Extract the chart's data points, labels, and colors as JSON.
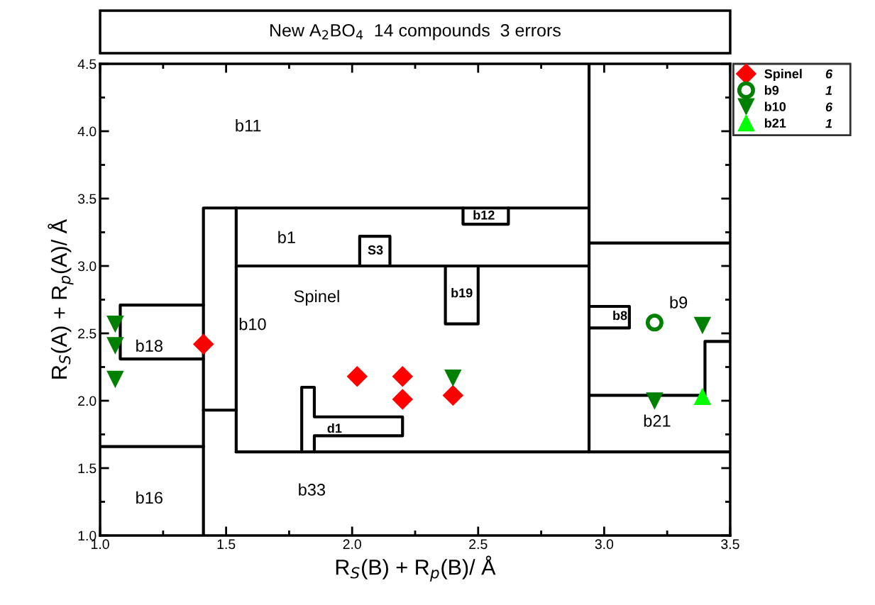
{
  "chart_data": {
    "type": "scatter",
    "title": "New A$_{2}$BO$_{4}$  14 compounds  3 errors",
    "xlabel": "R$_{S}$(B) + R$_{p}$(B)/ Å",
    "ylabel": "R$_{S}$(A) + R$_{p}$(A)/ Å",
    "xlim": [
      1.0,
      3.5
    ],
    "ylim": [
      1.0,
      4.5
    ],
    "xticks": [
      {
        "value": 1.0,
        "label": "1.0"
      },
      1.5,
      {
        "value": 2.0,
        "label": "2.0"
      },
      2.5,
      {
        "value": 3.0,
        "label": "3.0"
      },
      3.5
    ],
    "yticks": [
      {
        "value": 1.0,
        "label": "1.0"
      },
      1.5,
      {
        "value": 2.0,
        "label": "2.0"
      },
      2.5,
      {
        "value": 3.0,
        "label": "3.0"
      },
      3.5,
      {
        "value": 4.0,
        "label": "4.0"
      },
      4.5
    ],
    "grid": false,
    "legend": "top right",
    "series": [
      {
        "name": "Spinel",
        "color": "#ff0000",
        "marker": "diamond",
        "x": [
          1.41,
          2.02,
          2.2,
          2.2,
          2.4
        ],
        "values": [
          2.42,
          2.18,
          2.18,
          2.01,
          2.04
        ]
      },
      {
        "name": "b9",
        "color": "#008000",
        "marker": "circle",
        "x": [
          3.2
        ],
        "values": [
          2.58
        ]
      },
      {
        "name": "b10",
        "color": "#008000",
        "marker": "triangle",
        "x": [
          1.06,
          1.06,
          1.06,
          2.4,
          3.39,
          3.2
        ],
        "values": [
          2.57,
          2.41,
          2.16,
          2.17,
          2.56,
          2.0
        ]
      },
      {
        "name": "b21",
        "color": "#00ff00",
        "marker": "triangle",
        "x": [
          3.39
        ],
        "values": [
          2.03
        ]
      },
      {
        "type": "line",
        "color": "#000000",
        "x": [
          1.0,
          1.41
        ],
        "values": [
          1.66,
          1.66
        ]
      },
      {
        "type": "line",
        "color": "#000000",
        "x": [
          1.41,
          1.41,
          2.94
        ],
        "values": [
          1.0,
          3.43,
          3.43
        ]
      },
      {
        "type": "line",
        "color": "#000000",
        "x": [
          2.94,
          2.94
        ],
        "values": [
          4.5,
          1.62
        ]
      },
      {
        "type": "line",
        "color": "#000000",
        "x": [
          1.54,
          1.54
        ],
        "values": [
          3.43,
          1.62
        ]
      },
      {
        "type": "line",
        "color": "#000000",
        "x": [
          1.41,
          1.54
        ],
        "values": [
          1.93,
          1.93
        ]
      },
      {
        "type": "line",
        "color": "#000000",
        "x": [
          1.54,
          3.5
        ],
        "values": [
          1.62,
          1.62
        ]
      },
      {
        "type": "line",
        "color": "#000000",
        "x": [
          1.54,
          2.94
        ],
        "values": [
          3.0,
          3.0
        ]
      },
      {
        "type": "line",
        "color": "#000000",
        "x": [
          1.41,
          1.08,
          1.08,
          1.41
        ],
        "values": [
          2.71,
          2.71,
          2.31,
          2.31
        ]
      },
      {
        "type": "line",
        "color": "#000000",
        "x": [
          2.03,
          2.03,
          2.15,
          2.15
        ],
        "values": [
          3.0,
          3.22,
          3.22,
          3.0
        ]
      },
      {
        "type": "line",
        "color": "#000000",
        "x": [
          2.44,
          2.44,
          2.62,
          2.62
        ],
        "values": [
          3.43,
          3.31,
          3.31,
          3.43
        ]
      },
      {
        "type": "line",
        "color": "#000000",
        "x": [
          2.37,
          2.37,
          2.5,
          2.5
        ],
        "values": [
          3.0,
          2.57,
          2.57,
          3.0
        ]
      },
      {
        "type": "line",
        "color": "#000000",
        "x": [
          1.8,
          1.8,
          1.85,
          1.85,
          2.2,
          2.2,
          1.85,
          1.85
        ],
        "values": [
          1.62,
          2.1,
          2.1,
          1.88,
          1.88,
          1.74,
          1.74,
          1.62
        ]
      },
      {
        "type": "line",
        "color": "#000000",
        "x": [
          2.94,
          3.5
        ],
        "values": [
          3.17,
          3.17
        ]
      },
      {
        "type": "line",
        "color": "#000000",
        "x": [
          2.94,
          3.1,
          3.1,
          2.94
        ],
        "values": [
          2.7,
          2.7,
          2.54,
          2.54
        ]
      },
      {
        "type": "line",
        "color": "#000000",
        "x": [
          2.94,
          3.4,
          3.4,
          3.5
        ],
        "values": [
          2.04,
          2.04,
          2.44,
          2.44
        ]
      }
    ],
    "annotations": [
      "6",
      "1",
      "6",
      "1",
      "b11",
      "b1",
      "Spinel",
      "b10",
      "b18",
      "b16",
      "b33",
      "d1",
      "S3",
      "b12",
      "b19",
      "b8",
      "b9",
      "b21"
    ]
  }
}
